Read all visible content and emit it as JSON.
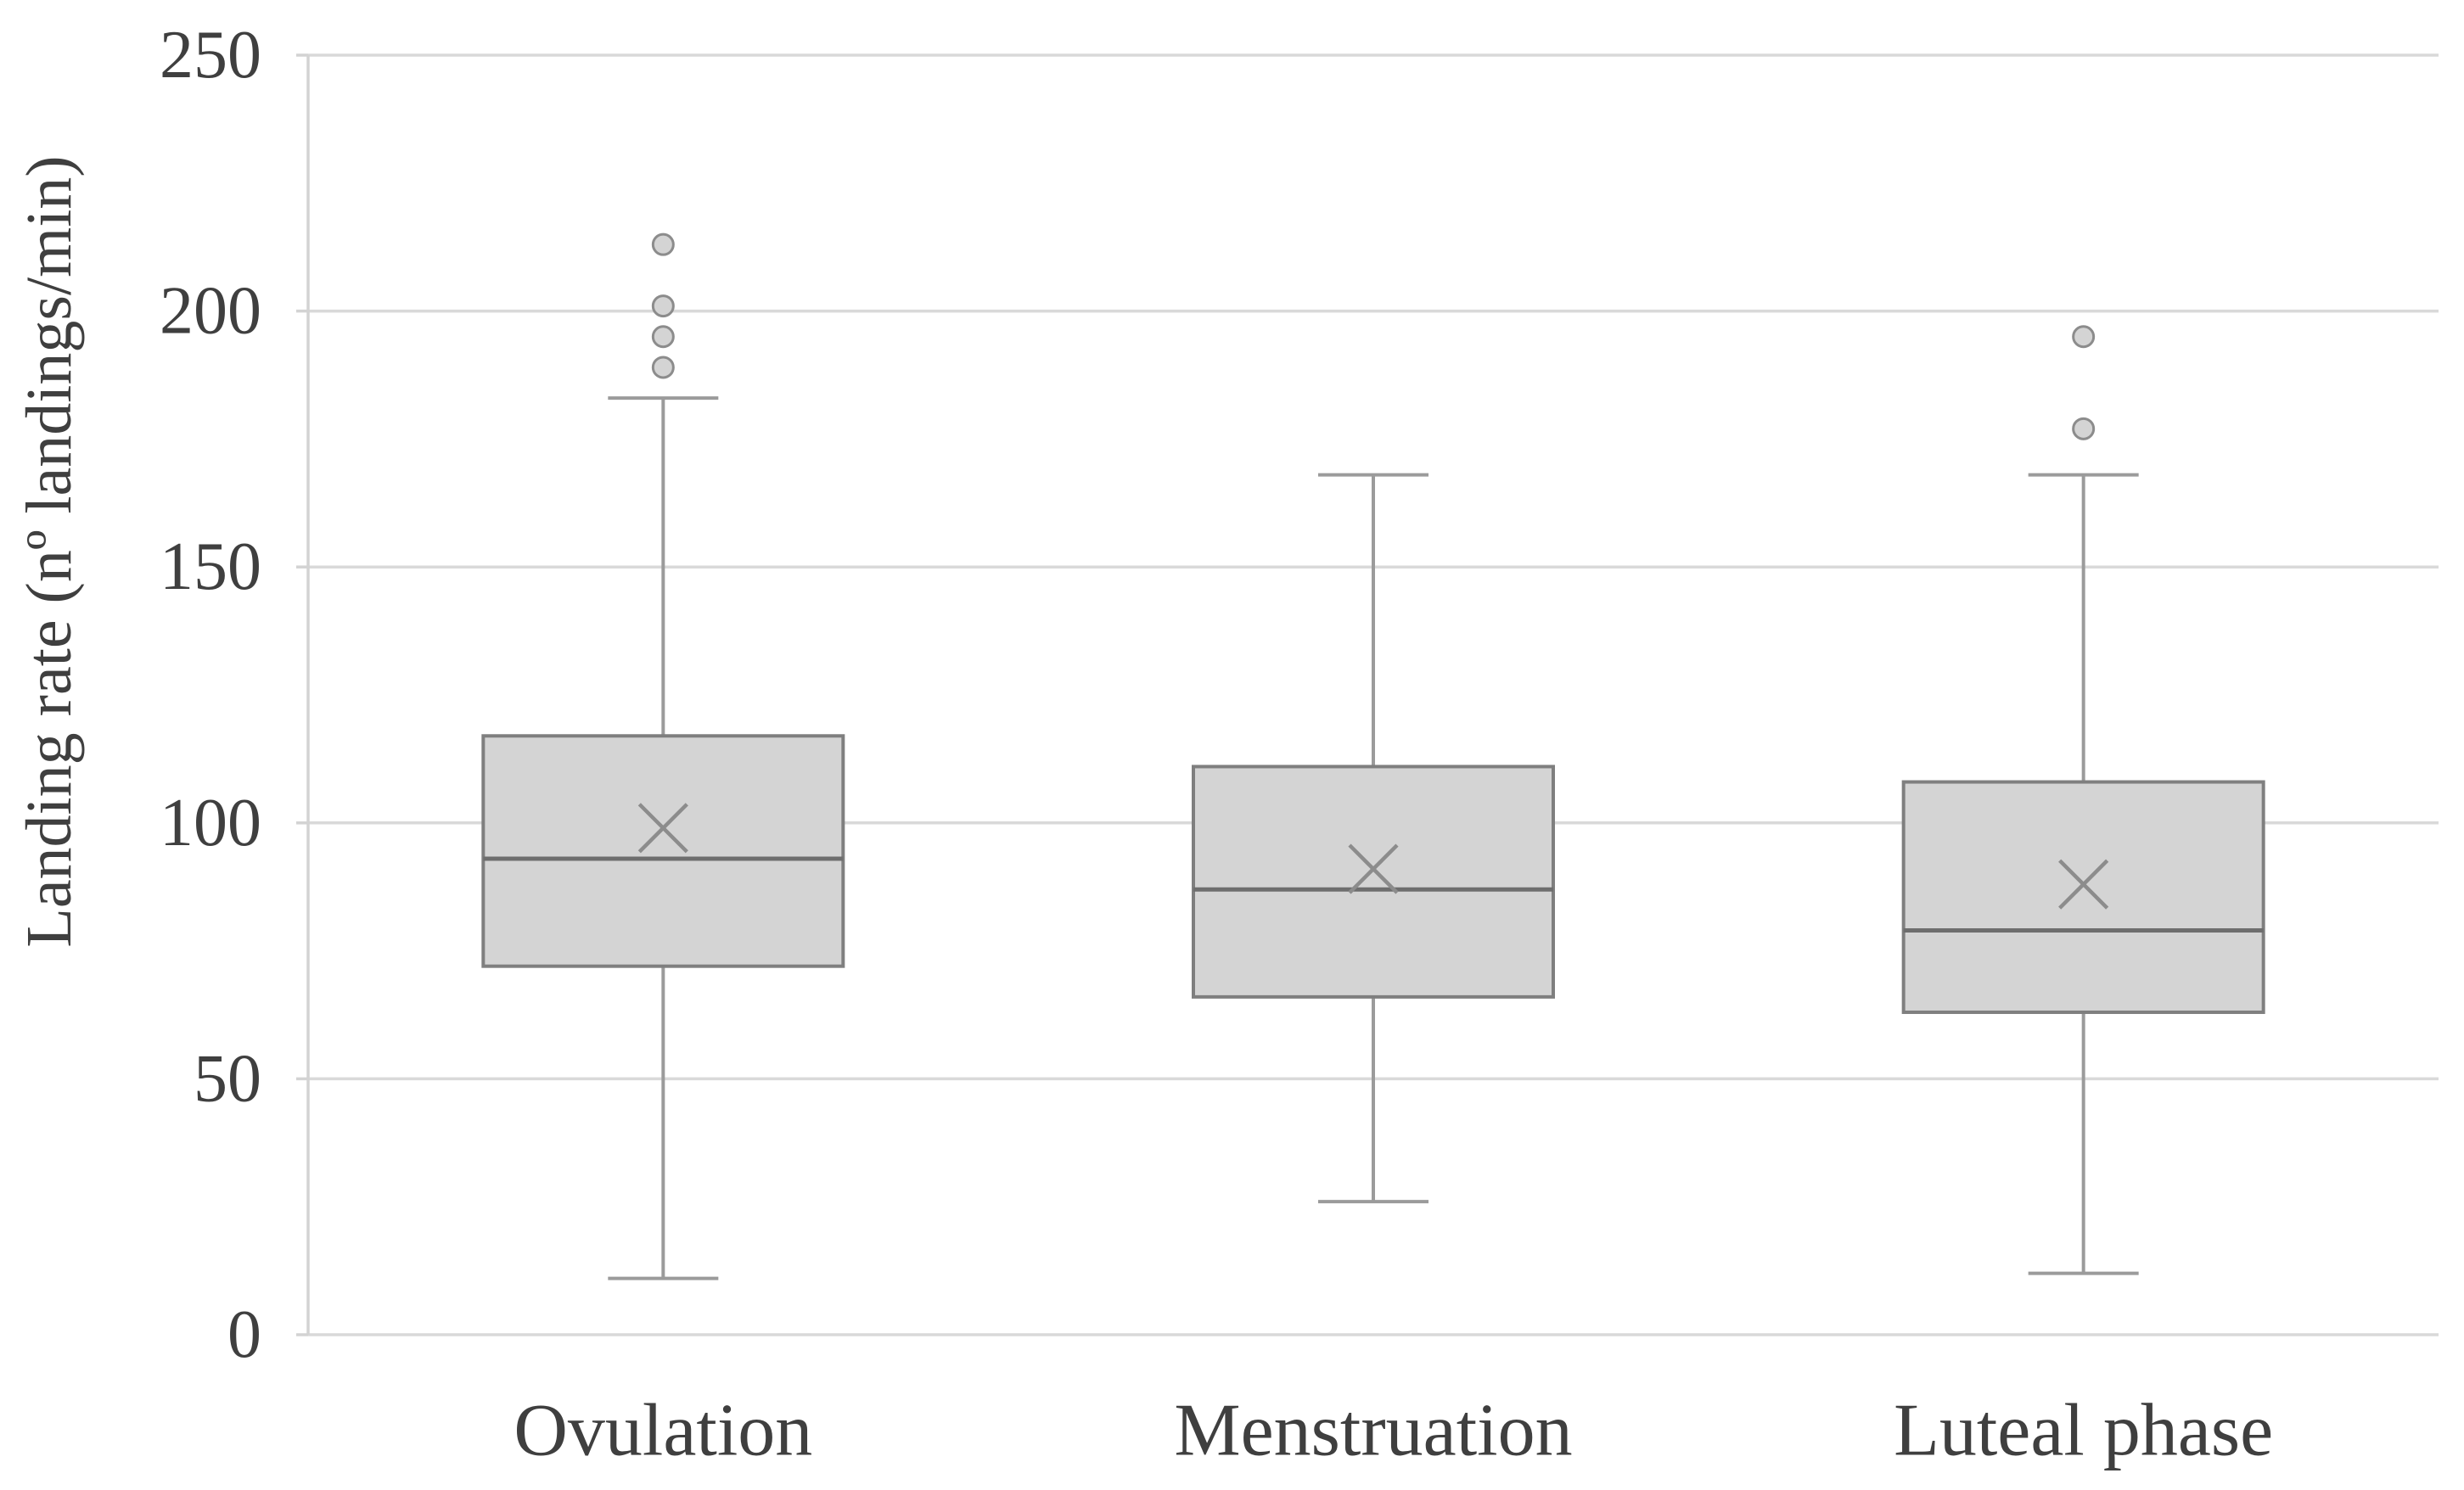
{
  "chart_data": {
    "type": "box",
    "title": "",
    "xlabel": "",
    "ylabel": "Landing rate (nº landings/min)",
    "categories": [
      "Ovulation",
      "Menstruation",
      "Luteal phase"
    ],
    "series": [
      {
        "name": "Ovulation",
        "whisker_low": 11,
        "q1": 72,
        "median": 93,
        "q3": 117,
        "whisker_high": 183,
        "mean": 99,
        "outliers": [
          189,
          195,
          201,
          213
        ]
      },
      {
        "name": "Menstruation",
        "whisker_low": 26,
        "q1": 66,
        "median": 87,
        "q3": 111,
        "whisker_high": 168,
        "mean": 91,
        "outliers": []
      },
      {
        "name": "Luteal phase",
        "whisker_low": 12,
        "q1": 63,
        "median": 79,
        "q3": 108,
        "whisker_high": 168,
        "mean": 88,
        "outliers": [
          177,
          195
        ]
      }
    ],
    "y_axis": {
      "min": 0,
      "max": 250,
      "step": 50,
      "tick_labels": [
        "0",
        "50",
        "100",
        "150",
        "200",
        "250"
      ]
    },
    "grid": true,
    "legend": false,
    "colors": {
      "background": "#ffffff",
      "gridline": "#d9d9d9",
      "axis_line": "#d3d3d3",
      "box_fill": "#d4d4d4",
      "box_border": "#7f7f7f",
      "median_line": "#6e6e6e",
      "whisker": "#9b9b9b",
      "mean_marker": "#8c8c8c",
      "outlier_fill": "#d4d4d4",
      "outlier_border": "#8c8c8c",
      "text": "#3f3f3f"
    }
  }
}
